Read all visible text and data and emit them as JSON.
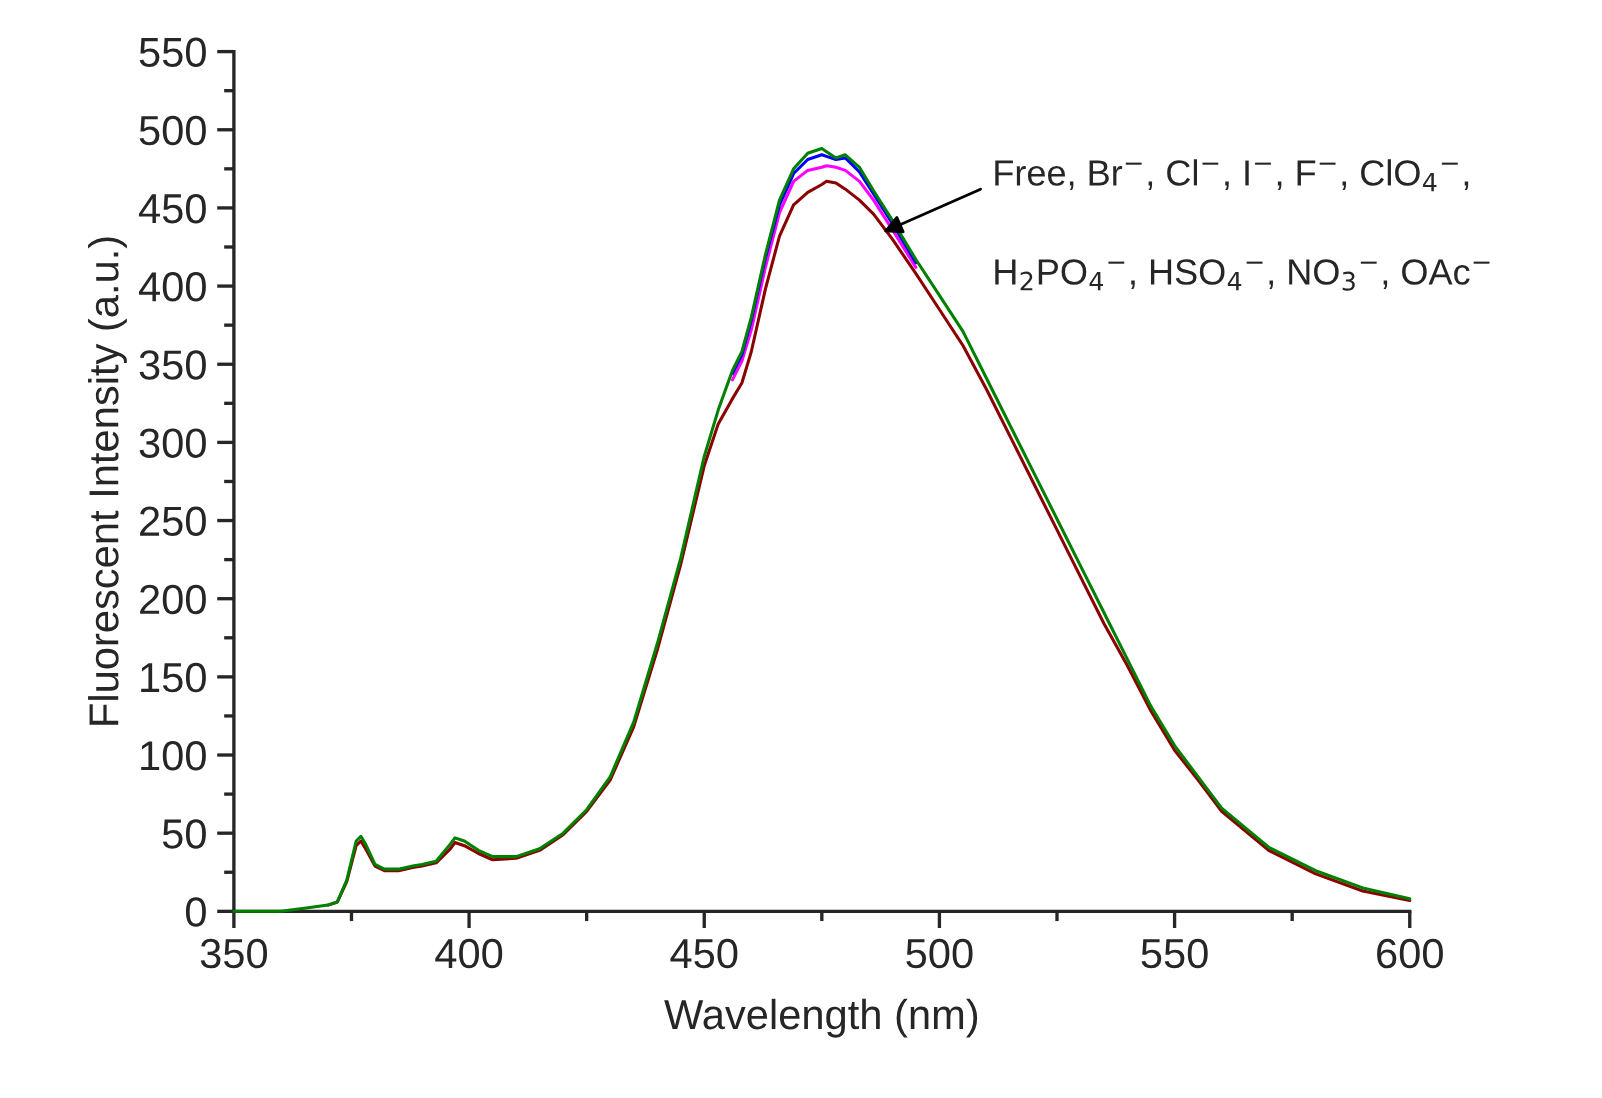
{
  "chart_data": {
    "type": "line",
    "xlabel": "Wavelength (nm)",
    "ylabel": "Fluorescent Intensity (a.u.)",
    "x": [
      350,
      360,
      365,
      370,
      372,
      374,
      376,
      377,
      378,
      380,
      382,
      385,
      388,
      390,
      393,
      396,
      397,
      399,
      402,
      405,
      410,
      415,
      420,
      425,
      430,
      435,
      440,
      445,
      450,
      453,
      456,
      458,
      460,
      463,
      466,
      469,
      472,
      475,
      476,
      478,
      480,
      483,
      486,
      490,
      495,
      500,
      505,
      510,
      515,
      520,
      525,
      530,
      535,
      540,
      545,
      550,
      555,
      560,
      570,
      580,
      590,
      600
    ],
    "series": [
      {
        "color": "#8b0000",
        "values": [
          null,
          null,
          null,
          4,
          6,
          19,
          42,
          45,
          40,
          29,
          26,
          26,
          28,
          29,
          31,
          40,
          44,
          42,
          37,
          33,
          34,
          39,
          49,
          64,
          84,
          118,
          167,
          222,
          285,
          312,
          328,
          338,
          358,
          398,
          432,
          452,
          460,
          465,
          467,
          466,
          462,
          455,
          446,
          430,
          408,
          385,
          362,
          334,
          304,
          274,
          244,
          214,
          184,
          157,
          128,
          103,
          84,
          64,
          39,
          24,
          13,
          7
        ]
      },
      {
        "color": "#ff00ff",
        "values": [
          null,
          null,
          null,
          null,
          null,
          null,
          null,
          null,
          null,
          null,
          null,
          null,
          null,
          null,
          null,
          null,
          null,
          null,
          null,
          null,
          null,
          null,
          null,
          null,
          null,
          null,
          null,
          null,
          null,
          null,
          340,
          352,
          372,
          412,
          447,
          467,
          474,
          476,
          477,
          476,
          474,
          467,
          455,
          436,
          412,
          null,
          null,
          null,
          null,
          null,
          null,
          null,
          null,
          null,
          null,
          null,
          null,
          null,
          null,
          null,
          null,
          null
        ]
      },
      {
        "color": "#0000ff",
        "values": [
          null,
          null,
          null,
          null,
          null,
          null,
          null,
          null,
          null,
          null,
          null,
          null,
          null,
          null,
          null,
          null,
          null,
          null,
          null,
          null,
          null,
          null,
          null,
          null,
          null,
          null,
          null,
          null,
          null,
          null,
          344,
          356,
          378,
          418,
          452,
          472,
          481,
          484,
          483,
          481,
          482,
          473,
          459,
          440,
          415,
          null,
          null,
          null,
          null,
          null,
          null,
          null,
          null,
          null,
          null,
          null,
          null,
          null,
          null,
          null,
          null,
          null
        ]
      },
      {
        "color": "#008000",
        "values": [
          0,
          0,
          2,
          4,
          6,
          20,
          45,
          48,
          43,
          30,
          27,
          27,
          29,
          30,
          32,
          43,
          47,
          45,
          39,
          35,
          35,
          40,
          50,
          65,
          86,
          121,
          171,
          226,
          291,
          321,
          346,
          358,
          380,
          420,
          455,
          475,
          485,
          488,
          486,
          482,
          484,
          476,
          461,
          442,
          417,
          394,
          371,
          341,
          311,
          281,
          251,
          221,
          191,
          161,
          131,
          106,
          86,
          66,
          41,
          26,
          15,
          8
        ]
      }
    ],
    "xlim": [
      350,
      600
    ],
    "ylim": [
      0,
      550
    ],
    "xticks": [
      350,
      400,
      450,
      500,
      550,
      600
    ],
    "yticks": [
      0,
      50,
      100,
      150,
      200,
      250,
      300,
      350,
      400,
      450,
      500,
      550
    ],
    "grid": false,
    "legend": false,
    "marker": "none",
    "line_style": "solid",
    "annotations": [
      "Free, Br$^{−}$, Cl$^{−}$, I$^{−}$, F$^{−}$, ClO$_{4}$$^{−}$,",
      "H$_{2}$PO$_{4}$$^{−}$, HSO$_{4}$$^{−}$, NO$_{3}$$^{−}$, OAc$^{−}$"
    ]
  }
}
